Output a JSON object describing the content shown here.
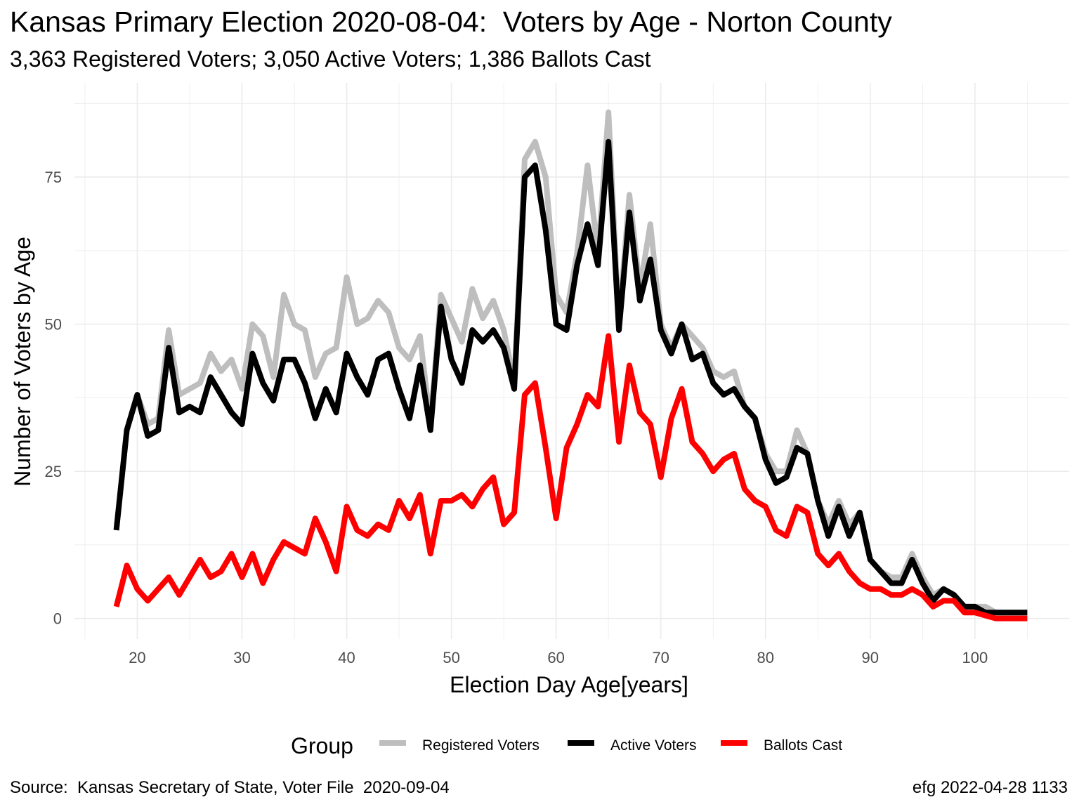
{
  "chart_data": {
    "type": "line",
    "title": "Kansas Primary Election 2020-08-04:  Voters by Age - Norton County",
    "subtitle": "3,363 Registered Voters; 3,050 Active Voters; 1,386 Ballots Cast",
    "xlabel": "Election Day Age[years]",
    "ylabel": "Number of Voters by Age",
    "xlim": [
      14,
      109
    ],
    "ylim": [
      -3.5,
      91
    ],
    "x_ticks": [
      20,
      30,
      40,
      50,
      60,
      70,
      80,
      90,
      100
    ],
    "y_ticks": [
      0,
      25,
      50,
      75
    ],
    "grid": true,
    "legend": {
      "title": "Group",
      "position": "bottom"
    },
    "x": [
      18,
      19,
      20,
      21,
      22,
      23,
      24,
      25,
      26,
      27,
      28,
      29,
      30,
      31,
      32,
      33,
      34,
      35,
      36,
      37,
      38,
      39,
      40,
      41,
      42,
      43,
      44,
      45,
      46,
      47,
      48,
      49,
      50,
      51,
      52,
      53,
      54,
      55,
      56,
      57,
      58,
      59,
      60,
      61,
      62,
      63,
      64,
      65,
      66,
      67,
      68,
      69,
      70,
      71,
      72,
      73,
      74,
      75,
      76,
      77,
      78,
      79,
      80,
      81,
      82,
      83,
      84,
      85,
      86,
      87,
      88,
      89,
      90,
      91,
      92,
      93,
      94,
      95,
      96,
      97,
      98,
      99,
      100,
      101,
      102,
      103,
      104,
      105
    ],
    "series": [
      {
        "name": "Registered Voters",
        "color": "#bebebe",
        "values": [
          15,
          32,
          38,
          33,
          34,
          49,
          38,
          39,
          40,
          45,
          42,
          44,
          39,
          50,
          48,
          41,
          55,
          50,
          49,
          41,
          45,
          46,
          58,
          50,
          51,
          54,
          52,
          46,
          44,
          48,
          33,
          55,
          51,
          47,
          56,
          51,
          54,
          49,
          40,
          78,
          81,
          75,
          55,
          52,
          62,
          77,
          62,
          86,
          50,
          72,
          56,
          67,
          50,
          46,
          50,
          48,
          46,
          42,
          41,
          42,
          36,
          34,
          28,
          25,
          25,
          32,
          28,
          20,
          16,
          20,
          16,
          18,
          10,
          8,
          7,
          7,
          11,
          7,
          4,
          5,
          4,
          2,
          2,
          2,
          1,
          1,
          1,
          1
        ]
      },
      {
        "name": "Active Voters",
        "color": "#000000",
        "values": [
          15,
          32,
          38,
          31,
          32,
          46,
          35,
          36,
          35,
          41,
          38,
          35,
          33,
          45,
          40,
          37,
          44,
          44,
          40,
          34,
          39,
          35,
          45,
          41,
          38,
          44,
          45,
          39,
          34,
          43,
          32,
          53,
          44,
          40,
          49,
          47,
          49,
          46,
          39,
          75,
          77,
          66,
          50,
          49,
          60,
          67,
          60,
          81,
          49,
          69,
          54,
          61,
          49,
          45,
          50,
          44,
          45,
          40,
          38,
          39,
          36,
          34,
          27,
          23,
          24,
          29,
          28,
          20,
          14,
          19,
          14,
          18,
          10,
          8,
          6,
          6,
          10,
          6,
          3,
          5,
          4,
          2,
          2,
          1,
          1,
          1,
          1,
          1
        ]
      },
      {
        "name": "Ballots Cast",
        "color": "#ff0000",
        "values": [
          2,
          9,
          5,
          3,
          5,
          7,
          4,
          7,
          10,
          7,
          8,
          11,
          7,
          11,
          6,
          10,
          13,
          12,
          11,
          17,
          13,
          8,
          19,
          15,
          14,
          16,
          15,
          20,
          17,
          21,
          11,
          20,
          20,
          21,
          19,
          22,
          24,
          16,
          18,
          38,
          40,
          29,
          17,
          29,
          33,
          38,
          36,
          48,
          30,
          43,
          35,
          33,
          24,
          34,
          39,
          30,
          28,
          25,
          27,
          28,
          22,
          20,
          19,
          15,
          14,
          19,
          18,
          11,
          9,
          11,
          8,
          6,
          5,
          5,
          4,
          4,
          5,
          4,
          2,
          3,
          3,
          1,
          1,
          0.5,
          0,
          0,
          0,
          0
        ]
      }
    ]
  },
  "caption": {
    "source": "Source:  Kansas Secretary of State, Voter File  2020-09-04",
    "credit": "efg 2022-04-28 1133"
  }
}
